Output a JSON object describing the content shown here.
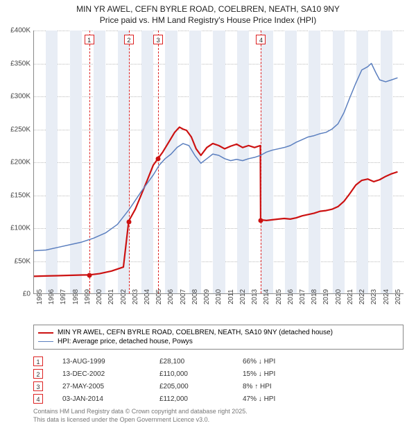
{
  "title_line1": "MIN YR AWEL, CEFN BYRLE ROAD, COELBREN, NEATH, SA10 9NY",
  "title_line2": "Price paid vs. HM Land Registry's House Price Index (HPI)",
  "chart": {
    "type": "line",
    "background_color": "#ffffff",
    "band_color": "#e8edf5",
    "grid_color": "#bbbbbb",
    "axis_color": "#888888",
    "x_min": 1995,
    "x_max": 2026,
    "y_min": 0,
    "y_max": 400000,
    "ytick_step": 50000,
    "yticks": [
      "£0",
      "£50K",
      "£100K",
      "£150K",
      "£200K",
      "£250K",
      "£300K",
      "£350K",
      "£400K"
    ],
    "xticks": [
      1995,
      1996,
      1997,
      1998,
      1999,
      2000,
      2001,
      2002,
      2003,
      2004,
      2005,
      2006,
      2007,
      2008,
      2009,
      2010,
      2011,
      2012,
      2013,
      2014,
      2015,
      2016,
      2017,
      2018,
      2019,
      2020,
      2021,
      2022,
      2023,
      2024,
      2025
    ],
    "series": [
      {
        "name": "property",
        "label": "MIN YR AWEL, CEFN BYRLE ROAD, COELBREN, NEATH, SA10 9NY (detached house)",
        "color": "#cc1111",
        "width": 2.2,
        "points": [
          [
            1995.0,
            26000
          ],
          [
            1996.0,
            26500
          ],
          [
            1997.0,
            27000
          ],
          [
            1998.0,
            27500
          ],
          [
            1999.0,
            28000
          ],
          [
            1999.62,
            28100
          ],
          [
            1999.63,
            28100
          ],
          [
            2000.5,
            30000
          ],
          [
            2001.5,
            34000
          ],
          [
            2002.5,
            40000
          ],
          [
            2002.95,
            110000
          ],
          [
            2003.5,
            128000
          ],
          [
            2004.0,
            150000
          ],
          [
            2004.5,
            172000
          ],
          [
            2005.0,
            195000
          ],
          [
            2005.4,
            205000
          ],
          [
            2005.8,
            215000
          ],
          [
            2006.3,
            230000
          ],
          [
            2006.8,
            245000
          ],
          [
            2007.2,
            253000
          ],
          [
            2007.5,
            250000
          ],
          [
            2007.8,
            248000
          ],
          [
            2008.2,
            238000
          ],
          [
            2008.6,
            220000
          ],
          [
            2009.0,
            210000
          ],
          [
            2009.5,
            222000
          ],
          [
            2010.0,
            228000
          ],
          [
            2010.5,
            225000
          ],
          [
            2011.0,
            220000
          ],
          [
            2011.5,
            224000
          ],
          [
            2012.0,
            227000
          ],
          [
            2012.5,
            222000
          ],
          [
            2013.0,
            225000
          ],
          [
            2013.5,
            222000
          ],
          [
            2013.99,
            225000
          ],
          [
            2014.01,
            112000
          ],
          [
            2014.5,
            111000
          ],
          [
            2015.0,
            112000
          ],
          [
            2015.5,
            113000
          ],
          [
            2016.0,
            114000
          ],
          [
            2016.5,
            113000
          ],
          [
            2017.0,
            115000
          ],
          [
            2017.5,
            118000
          ],
          [
            2018.0,
            120000
          ],
          [
            2018.5,
            122000
          ],
          [
            2019.0,
            125000
          ],
          [
            2019.5,
            126000
          ],
          [
            2020.0,
            128000
          ],
          [
            2020.5,
            132000
          ],
          [
            2021.0,
            140000
          ],
          [
            2021.5,
            152000
          ],
          [
            2022.0,
            165000
          ],
          [
            2022.5,
            172000
          ],
          [
            2023.0,
            174000
          ],
          [
            2023.5,
            170000
          ],
          [
            2024.0,
            173000
          ],
          [
            2024.5,
            178000
          ],
          [
            2025.0,
            182000
          ],
          [
            2025.5,
            185000
          ]
        ]
      },
      {
        "name": "hpi",
        "label": "HPI: Average price, detached house, Powys",
        "color": "#5b7fbf",
        "width": 1.5,
        "points": [
          [
            1995.0,
            65000
          ],
          [
            1996.0,
            66000
          ],
          [
            1997.0,
            70000
          ],
          [
            1998.0,
            74000
          ],
          [
            1999.0,
            78000
          ],
          [
            2000.0,
            84000
          ],
          [
            2001.0,
            92000
          ],
          [
            2002.0,
            105000
          ],
          [
            2003.0,
            128000
          ],
          [
            2004.0,
            155000
          ],
          [
            2005.0,
            180000
          ],
          [
            2005.5,
            195000
          ],
          [
            2006.0,
            205000
          ],
          [
            2006.5,
            212000
          ],
          [
            2007.0,
            222000
          ],
          [
            2007.5,
            228000
          ],
          [
            2008.0,
            225000
          ],
          [
            2008.5,
            210000
          ],
          [
            2009.0,
            198000
          ],
          [
            2009.5,
            205000
          ],
          [
            2010.0,
            212000
          ],
          [
            2010.5,
            210000
          ],
          [
            2011.0,
            205000
          ],
          [
            2011.5,
            202000
          ],
          [
            2012.0,
            204000
          ],
          [
            2012.5,
            202000
          ],
          [
            2013.0,
            205000
          ],
          [
            2013.5,
            207000
          ],
          [
            2014.0,
            210000
          ],
          [
            2014.5,
            215000
          ],
          [
            2015.0,
            218000
          ],
          [
            2015.5,
            220000
          ],
          [
            2016.0,
            222000
          ],
          [
            2016.5,
            225000
          ],
          [
            2017.0,
            230000
          ],
          [
            2017.5,
            234000
          ],
          [
            2018.0,
            238000
          ],
          [
            2018.5,
            240000
          ],
          [
            2019.0,
            243000
          ],
          [
            2019.5,
            245000
          ],
          [
            2020.0,
            250000
          ],
          [
            2020.5,
            258000
          ],
          [
            2021.0,
            275000
          ],
          [
            2021.5,
            298000
          ],
          [
            2022.0,
            320000
          ],
          [
            2022.5,
            340000
          ],
          [
            2023.0,
            345000
          ],
          [
            2023.3,
            350000
          ],
          [
            2023.7,
            335000
          ],
          [
            2024.0,
            325000
          ],
          [
            2024.5,
            322000
          ],
          [
            2025.0,
            325000
          ],
          [
            2025.5,
            328000
          ]
        ]
      }
    ],
    "markers": [
      {
        "n": "1",
        "x": 1999.62,
        "y": 28100
      },
      {
        "n": "2",
        "x": 2002.95,
        "y": 110000
      },
      {
        "n": "3",
        "x": 2005.4,
        "y": 205000
      },
      {
        "n": "4",
        "x": 2014.01,
        "y": 112000
      }
    ]
  },
  "legend": {
    "border_color": "#888888"
  },
  "events": [
    {
      "n": "1",
      "date": "13-AUG-1999",
      "price": "£28,100",
      "delta": "66% ↓ HPI"
    },
    {
      "n": "2",
      "date": "13-DEC-2002",
      "price": "£110,000",
      "delta": "15% ↓ HPI"
    },
    {
      "n": "3",
      "date": "27-MAY-2005",
      "price": "£205,000",
      "delta": "8% ↑ HPI"
    },
    {
      "n": "4",
      "date": "03-JAN-2014",
      "price": "£112,000",
      "delta": "47% ↓ HPI"
    }
  ],
  "footer_line1": "Contains HM Land Registry data © Crown copyright and database right 2025.",
  "footer_line2": "This data is licensed under the Open Government Licence v3.0."
}
